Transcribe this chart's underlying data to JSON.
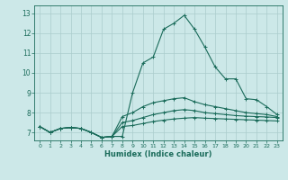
{
  "xlabel": "Humidex (Indice chaleur)",
  "bg_color": "#cce8e8",
  "grid_color": "#aacccc",
  "line_color": "#1a6b5a",
  "xlim": [
    -0.5,
    23.5
  ],
  "ylim": [
    6.6,
    13.4
  ],
  "xticks": [
    0,
    1,
    2,
    3,
    4,
    5,
    6,
    7,
    8,
    9,
    10,
    11,
    12,
    13,
    14,
    15,
    16,
    17,
    18,
    19,
    20,
    21,
    22,
    23
  ],
  "yticks": [
    7,
    8,
    9,
    10,
    11,
    12,
    13
  ],
  "curves": [
    [
      7.3,
      7.0,
      7.2,
      7.25,
      7.2,
      7.0,
      6.75,
      6.8,
      6.8,
      9.0,
      10.5,
      10.8,
      12.2,
      12.5,
      12.9,
      12.2,
      11.3,
      10.3,
      9.7,
      9.7,
      8.7,
      8.65,
      8.3,
      7.9
    ],
    [
      7.3,
      7.0,
      7.2,
      7.25,
      7.2,
      7.0,
      6.75,
      6.8,
      7.8,
      8.0,
      8.3,
      8.5,
      8.6,
      8.7,
      8.75,
      8.55,
      8.4,
      8.3,
      8.2,
      8.1,
      8.0,
      7.95,
      7.9,
      7.8
    ],
    [
      7.3,
      7.0,
      7.2,
      7.25,
      7.2,
      7.0,
      6.75,
      6.8,
      7.5,
      7.6,
      7.75,
      7.9,
      8.0,
      8.1,
      8.15,
      8.1,
      8.0,
      7.95,
      7.9,
      7.85,
      7.82,
      7.8,
      7.78,
      7.75
    ],
    [
      7.3,
      7.0,
      7.2,
      7.25,
      7.2,
      7.0,
      6.75,
      6.8,
      7.3,
      7.35,
      7.45,
      7.55,
      7.62,
      7.68,
      7.72,
      7.75,
      7.72,
      7.7,
      7.68,
      7.66,
      7.64,
      7.62,
      7.6,
      7.58
    ]
  ]
}
